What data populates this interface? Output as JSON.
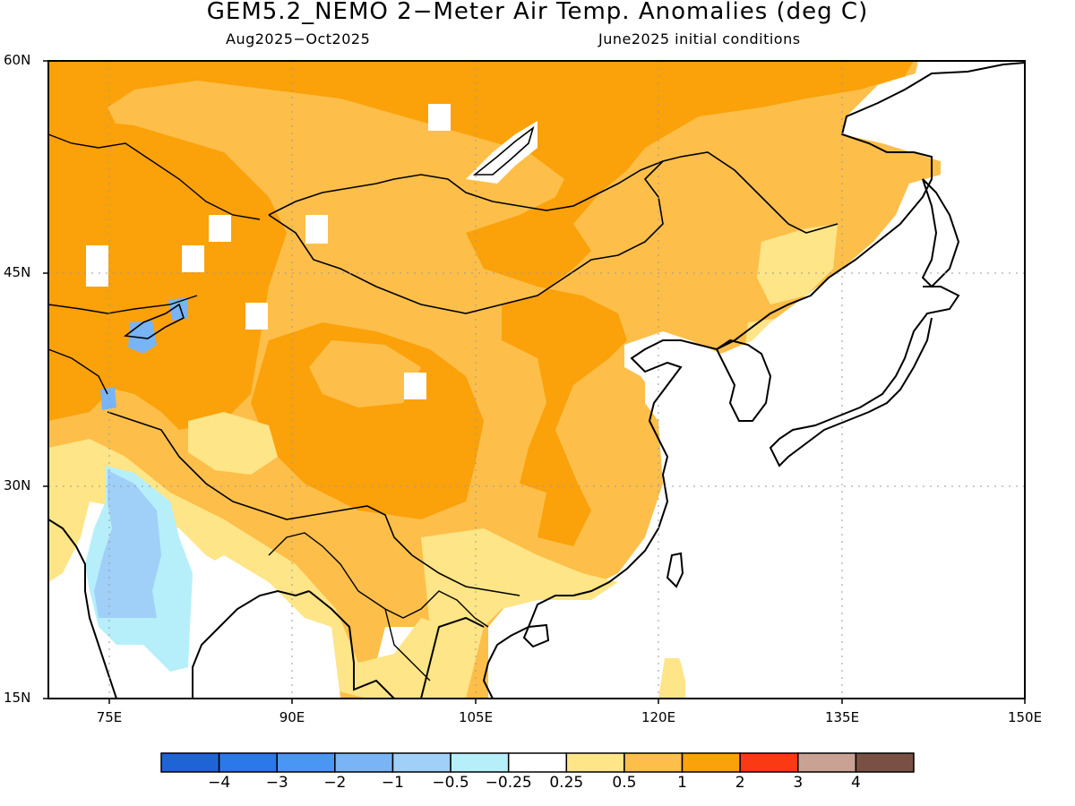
{
  "title": "GEM5.2_NEMO 2−Meter Air Temp. Anomalies (deg C)",
  "subtitle_left": "Aug2025−Oct2025",
  "subtitle_right": "June2025 initial conditions",
  "map": {
    "lon_range": [
      70,
      150
    ],
    "lat_range": [
      15,
      60
    ],
    "lat_ticks": [
      {
        "value": 60,
        "label": "60N"
      },
      {
        "value": 45,
        "label": "45N"
      },
      {
        "value": 30,
        "label": "30N"
      },
      {
        "value": 15,
        "label": "15N"
      }
    ],
    "lon_ticks": [
      {
        "value": 75,
        "label": "75E"
      },
      {
        "value": 90,
        "label": "90E"
      },
      {
        "value": 105,
        "label": "105E"
      },
      {
        "value": 120,
        "label": "120E"
      },
      {
        "value": 135,
        "label": "135E"
      },
      {
        "value": 150,
        "label": "150E"
      }
    ],
    "gridlines": true
  },
  "colorbar": {
    "colors": [
      "#1e64d6",
      "#2a78ea",
      "#4a96f5",
      "#78b4f6",
      "#a0cff8",
      "#b6effa",
      "#ffffff",
      "#fee587",
      "#fdbf4a",
      "#fba10a",
      "#fa3a12",
      "#c9a294",
      "#7a5045"
    ],
    "labels": [
      "−4",
      "−3",
      "−2",
      "−1",
      "−0.5",
      "−0.25",
      "0.25",
      "0.5",
      "1",
      "2",
      "3",
      "4"
    ]
  }
}
